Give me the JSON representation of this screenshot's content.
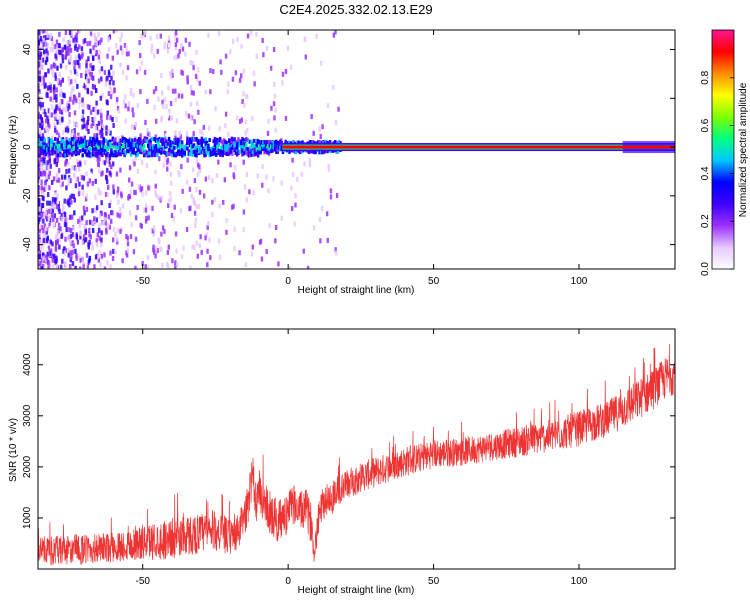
{
  "title": "C2E4.2025.332.02.13.E29",
  "chart_data": [
    {
      "type": "heatmap",
      "title": "C2E4.2025.332.02.13.E29",
      "xlabel": "Height of straight line (km)",
      "ylabel": "Frequency (Hz)",
      "xlim": [
        -86,
        133
      ],
      "ylim": [
        -50,
        48
      ],
      "xticks": [
        -50,
        0,
        50,
        100
      ],
      "yticks": [
        40,
        20,
        0,
        -20,
        -40
      ],
      "xtick_labels": [
        "-50",
        "0",
        "50",
        "100"
      ],
      "ytick_labels": [
        "40",
        "20",
        "0",
        "-20",
        "-40"
      ],
      "description_of_values": "Spectrogram: strong narrow line near 0 Hz across full range; broadband scattered energy for heights below about 15 km, strongest below -60 km",
      "colorbar": {
        "label": "Normalized spectral amplitude",
        "range": [
          0,
          1
        ],
        "ticks": [
          0.0,
          0.2,
          0.4,
          0.6,
          0.8
        ],
        "tick_labels": [
          "0.0",
          "0.2",
          "0.4",
          "0.6",
          "0.8"
        ],
        "colormap": [
          "#ffffff",
          "#e6c8ff",
          "#9b30ff",
          "#3c00ff",
          "#0000ff",
          "#00c8ff",
          "#00ff80",
          "#7fff00",
          "#ffff00",
          "#ff8c00",
          "#ff0000",
          "#ff1493"
        ]
      }
    },
    {
      "type": "line",
      "xlabel": "Height of straight line (km)",
      "ylabel": "SNR (10 * v/v)",
      "xlim": [
        -86,
        133
      ],
      "ylim": [
        0,
        4700
      ],
      "xticks": [
        -50,
        0,
        50,
        100
      ],
      "yticks": [
        1000,
        2000,
        3000,
        4000
      ],
      "xtick_labels": [
        "-50",
        "0",
        "50",
        "100"
      ],
      "ytick_labels": [
        "1000",
        "2000",
        "3000",
        "4000"
      ],
      "color": "#ee3333",
      "series": [
        {
          "name": "SNR",
          "x": [
            -86,
            -80,
            -70,
            -60,
            -50,
            -40,
            -30,
            -25,
            -20,
            -17,
            -14,
            -12,
            -11,
            -10,
            -8,
            -6,
            -4,
            -2,
            0,
            2,
            4,
            6,
            8,
            9,
            10,
            11,
            12,
            15,
            20,
            25,
            30,
            40,
            50,
            60,
            70,
            80,
            90,
            100,
            110,
            120,
            125,
            130,
            133
          ],
          "y": [
            400,
            350,
            380,
            420,
            520,
            600,
            700,
            760,
            620,
            720,
            1200,
            2000,
            1100,
            1500,
            1300,
            1100,
            900,
            1000,
            1100,
            1300,
            1100,
            1200,
            900,
            250,
            900,
            1200,
            1300,
            1400,
            1650,
            1800,
            1900,
            2100,
            2250,
            2300,
            2400,
            2500,
            2600,
            2750,
            2950,
            3300,
            3500,
            3750,
            3850
          ],
          "noise_amplitude": [
            250,
            300,
            300,
            300,
            350,
            400,
            400,
            400,
            350,
            350,
            400,
            500,
            400,
            450,
            400,
            450,
            400,
            400,
            400,
            400,
            400,
            400,
            400,
            150,
            400,
            350,
            350,
            350,
            300,
            300,
            300,
            300,
            280,
            280,
            280,
            300,
            320,
            350,
            350,
            400,
            400,
            420,
            420
          ]
        }
      ]
    }
  ]
}
